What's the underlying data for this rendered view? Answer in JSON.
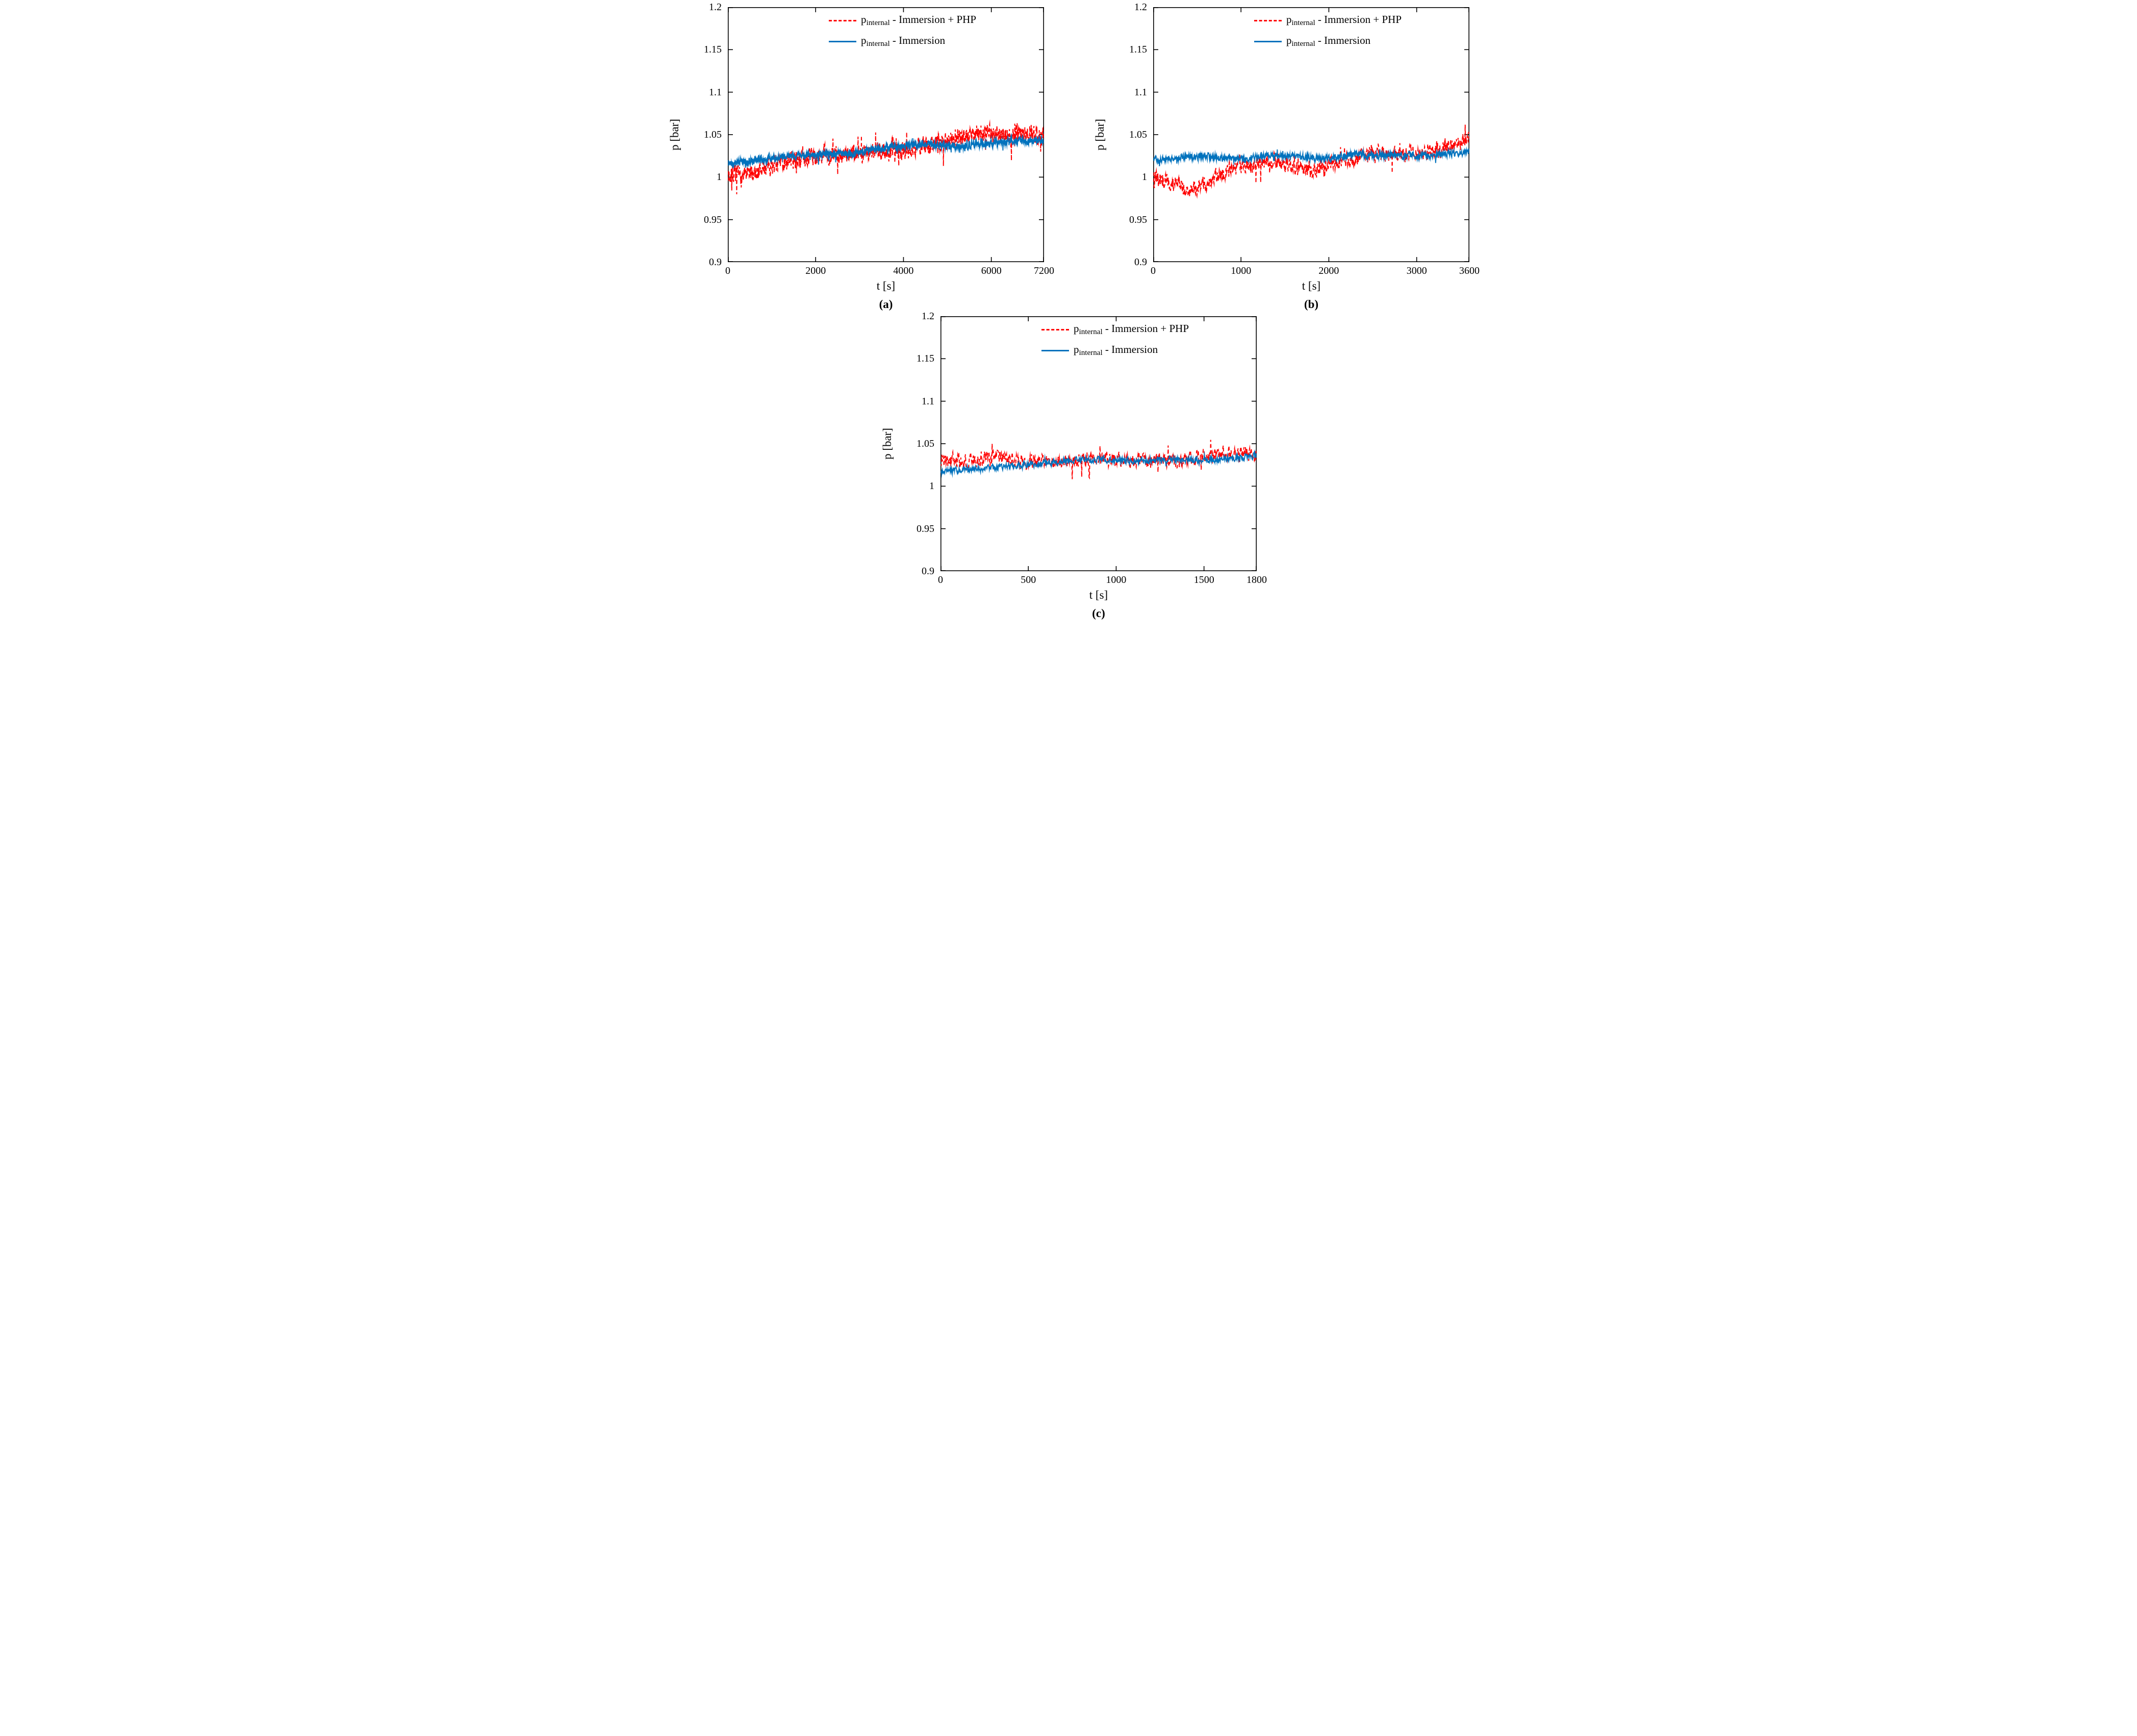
{
  "chart_data": [
    {
      "type": "line",
      "caption": "(a)",
      "xlabel": "t [s]",
      "ylabel": "p [bar]",
      "xlim": [
        0,
        7200
      ],
      "ylim": [
        0.9,
        1.2
      ],
      "xticks": [
        0,
        2000,
        4000,
        6000,
        7200
      ],
      "xtick_labels": [
        "0",
        "2000",
        "4000",
        "6000",
        "7200"
      ],
      "yticks": [
        0.9,
        0.95,
        1.0,
        1.05,
        1.1,
        1.15,
        1.2
      ],
      "ytick_labels": [
        "0.9",
        "0.95",
        "1",
        "1.05",
        "1.1",
        "1.15",
        "1.2"
      ],
      "samples": 1600,
      "grid": false,
      "legend_position": "top-center-inside",
      "legend": [
        {
          "sym": "p",
          "sub": "internal",
          "rest": " - Immersion + PHP",
          "color": "#FF0000",
          "dash": true
        },
        {
          "sym": "p",
          "sub": "internal",
          "rest": " - Immersion",
          "color": "#0072BD",
          "dash": false
        }
      ],
      "series": [
        {
          "name": "p_internal - Immersion + PHP",
          "color": "#FF0000",
          "dash": true,
          "noise": 0.0085,
          "x": [
            0,
            300,
            600,
            900,
            1200,
            1600,
            2000,
            2400,
            2800,
            3200,
            3600,
            4000,
            4400,
            4800,
            5200,
            5600,
            6000,
            6400,
            6800,
            7200
          ],
          "y": [
            1.004,
            1.0,
            1.005,
            1.013,
            1.018,
            1.022,
            1.024,
            1.026,
            1.028,
            1.03,
            1.031,
            1.032,
            1.036,
            1.04,
            1.046,
            1.052,
            1.05,
            1.048,
            1.052,
            1.048
          ]
        },
        {
          "name": "p_internal - Immersion",
          "color": "#0072BD",
          "dash": false,
          "noise": 0.0035,
          "x": [
            0,
            300,
            600,
            900,
            1200,
            1600,
            2000,
            2400,
            2800,
            3200,
            3600,
            4000,
            4400,
            4800,
            5200,
            5600,
            6000,
            6400,
            6800,
            7200
          ],
          "y": [
            1.016,
            1.018,
            1.02,
            1.022,
            1.024,
            1.025,
            1.026,
            1.027,
            1.028,
            1.032,
            1.035,
            1.036,
            1.038,
            1.038,
            1.036,
            1.038,
            1.04,
            1.042,
            1.043,
            1.042
          ]
        }
      ]
    },
    {
      "type": "line",
      "caption": "(b)",
      "xlabel": "t [s]",
      "ylabel": "p [bar]",
      "xlim": [
        0,
        3600
      ],
      "ylim": [
        0.9,
        1.2
      ],
      "xticks": [
        0,
        1000,
        2000,
        3000,
        3600
      ],
      "xtick_labels": [
        "0",
        "1000",
        "2000",
        "3000",
        "3600"
      ],
      "yticks": [
        0.9,
        0.95,
        1.0,
        1.05,
        1.1,
        1.15,
        1.2
      ],
      "ytick_labels": [
        "0.9",
        "0.95",
        "1",
        "1.05",
        "1.1",
        "1.15",
        "1.2"
      ],
      "samples": 1200,
      "grid": false,
      "legend_position": "top-center-inside",
      "legend": [
        {
          "sym": "p",
          "sub": "internal",
          "rest": " - Immersion + PHP",
          "color": "#FF0000",
          "dash": true
        },
        {
          "sym": "p",
          "sub": "internal",
          "rest": " - Immersion",
          "color": "#0072BD",
          "dash": false
        }
      ],
      "series": [
        {
          "name": "p_internal - Immersion + PHP",
          "color": "#FF0000",
          "dash": true,
          "noise": 0.0075,
          "x": [
            0,
            200,
            400,
            600,
            800,
            1000,
            1200,
            1400,
            1600,
            1800,
            2000,
            2200,
            2400,
            2600,
            2800,
            3000,
            3200,
            3400,
            3600
          ],
          "y": [
            1.0,
            0.993,
            0.988,
            0.992,
            1.005,
            1.012,
            1.015,
            1.02,
            1.012,
            1.01,
            1.015,
            1.02,
            1.025,
            1.028,
            1.025,
            1.03,
            1.032,
            1.035,
            1.045
          ]
        },
        {
          "name": "p_internal - Immersion",
          "color": "#0072BD",
          "dash": false,
          "noise": 0.0032,
          "x": [
            0,
            200,
            400,
            600,
            800,
            1000,
            1200,
            1400,
            1600,
            1800,
            2000,
            2200,
            2400,
            2600,
            2800,
            3000,
            3200,
            3400,
            3600
          ],
          "y": [
            1.02,
            1.022,
            1.024,
            1.025,
            1.022,
            1.02,
            1.024,
            1.026,
            1.025,
            1.022,
            1.022,
            1.025,
            1.026,
            1.025,
            1.026,
            1.025,
            1.026,
            1.028,
            1.03
          ]
        }
      ]
    },
    {
      "type": "line",
      "caption": "(c)",
      "xlabel": "t [s]",
      "ylabel": "p [bar]",
      "xlim": [
        0,
        1800
      ],
      "ylim": [
        0.9,
        1.2
      ],
      "xticks": [
        0,
        500,
        1000,
        1500,
        1800
      ],
      "xtick_labels": [
        "0",
        "500",
        "1000",
        "1500",
        "1800"
      ],
      "yticks": [
        0.9,
        0.95,
        1.0,
        1.05,
        1.1,
        1.15,
        1.2
      ],
      "ytick_labels": [
        "0.9",
        "0.95",
        "1",
        "1.05",
        "1.1",
        "1.15",
        "1.2"
      ],
      "samples": 900,
      "grid": false,
      "legend_position": "top-center-inside",
      "legend": [
        {
          "sym": "p",
          "sub": "internal",
          "rest": " - Immersion + PHP",
          "color": "#FF0000",
          "dash": true
        },
        {
          "sym": "p",
          "sub": "internal",
          "rest": " - Immersion",
          "color": "#0072BD",
          "dash": false
        }
      ],
      "series": [
        {
          "name": "p_internal - Immersion + PHP",
          "color": "#FF0000",
          "dash": true,
          "noise": 0.007,
          "x": [
            0,
            150,
            300,
            450,
            600,
            750,
            900,
            1050,
            1200,
            1350,
            1500,
            1650,
            1800
          ],
          "y": [
            1.03,
            1.028,
            1.035,
            1.03,
            1.028,
            1.03,
            1.032,
            1.03,
            1.032,
            1.03,
            1.035,
            1.038,
            1.038
          ]
        },
        {
          "name": "p_internal - Immersion",
          "color": "#0072BD",
          "dash": false,
          "noise": 0.003,
          "x": [
            0,
            150,
            300,
            450,
            600,
            750,
            900,
            1050,
            1200,
            1350,
            1500,
            1650,
            1800
          ],
          "y": [
            1.017,
            1.02,
            1.022,
            1.025,
            1.027,
            1.03,
            1.032,
            1.03,
            1.03,
            1.032,
            1.03,
            1.033,
            1.036
          ]
        }
      ]
    }
  ]
}
